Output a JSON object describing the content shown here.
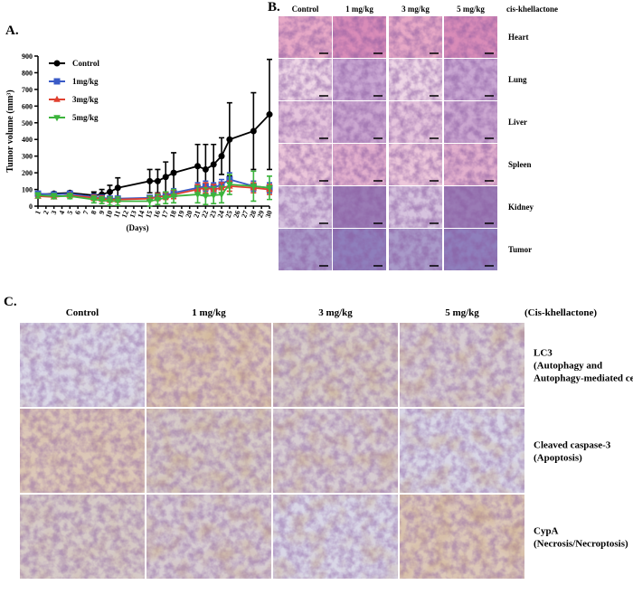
{
  "chart_data": {
    "type": "line",
    "panel_label": "A.",
    "y_label": "Tumor volume (mm³)",
    "x_label": "(Days)",
    "x": [
      1,
      3,
      5,
      8,
      9,
      10,
      11,
      15,
      16,
      17,
      18,
      21,
      22,
      23,
      24,
      25,
      28,
      30
    ],
    "xlim": [
      1,
      30
    ],
    "xticks": [
      1,
      2,
      3,
      4,
      5,
      6,
      7,
      8,
      9,
      10,
      11,
      12,
      13,
      14,
      15,
      16,
      17,
      18,
      19,
      20,
      21,
      22,
      23,
      24,
      25,
      26,
      27,
      28,
      29,
      30
    ],
    "ylim": [
      0,
      900
    ],
    "yticks": [
      0,
      100,
      200,
      300,
      400,
      500,
      600,
      700,
      800,
      900
    ],
    "legend": "upper left",
    "series": [
      {
        "name": "Control",
        "color": "#000000",
        "marker": "circle",
        "values": [
          70,
          75,
          80,
          65,
          70,
          85,
          110,
          150,
          150,
          175,
          200,
          240,
          220,
          250,
          300,
          400,
          450,
          550
        ],
        "errors": [
          10,
          10,
          10,
          20,
          30,
          40,
          60,
          70,
          70,
          90,
          120,
          130,
          150,
          120,
          110,
          220,
          230,
          330
        ]
      },
      {
        "name": "1mg/kg",
        "color": "#3a5bc7",
        "marker": "square",
        "values": [
          75,
          70,
          75,
          55,
          50,
          45,
          45,
          50,
          55,
          65,
          80,
          110,
          120,
          110,
          130,
          160,
          120,
          110
        ],
        "errors": [
          10,
          10,
          10,
          15,
          15,
          15,
          15,
          15,
          20,
          20,
          25,
          30,
          30,
          30,
          30,
          40,
          30,
          30
        ]
      },
      {
        "name": "3mg/kg",
        "color": "#e0402f",
        "marker": "triangle-up",
        "values": [
          60,
          55,
          65,
          50,
          45,
          40,
          40,
          45,
          55,
          60,
          70,
          100,
          110,
          100,
          110,
          120,
          110,
          100
        ],
        "errors": [
          10,
          10,
          10,
          15,
          15,
          15,
          15,
          15,
          20,
          20,
          25,
          30,
          30,
          30,
          30,
          30,
          30,
          30
        ]
      },
      {
        "name": "5mg/kg",
        "color": "#3cb43c",
        "marker": "triangle-down",
        "values": [
          65,
          60,
          60,
          40,
          35,
          30,
          30,
          30,
          40,
          50,
          60,
          70,
          60,
          65,
          70,
          130,
          120,
          110
        ],
        "errors": [
          15,
          15,
          15,
          20,
          20,
          25,
          25,
          30,
          30,
          35,
          40,
          50,
          50,
          50,
          50,
          60,
          90,
          70
        ]
      }
    ]
  },
  "panel_b": {
    "label": "B.",
    "columns": [
      "Control",
      "1 mg/kg",
      "3 mg/kg",
      "5 mg/kg"
    ],
    "treatment": "cis-khellactone",
    "rows": [
      "Heart",
      "Lung",
      "Liver",
      "Spleen",
      "Kidney",
      "Tumor"
    ]
  },
  "panel_c": {
    "label": "C.",
    "columns": [
      "Control",
      "1 mg/kg",
      "3 mg/kg",
      "5 mg/kg"
    ],
    "treatment": "(Cis-khellactone)",
    "rows": [
      [
        "LC3",
        "(Autophagy and",
        "Autophagy-mediated cell death)"
      ],
      [
        "Cleaved caspase-3",
        "(Apoptosis)"
      ],
      [
        "CypA",
        "(Necrosis/Necroptosis)"
      ]
    ]
  }
}
